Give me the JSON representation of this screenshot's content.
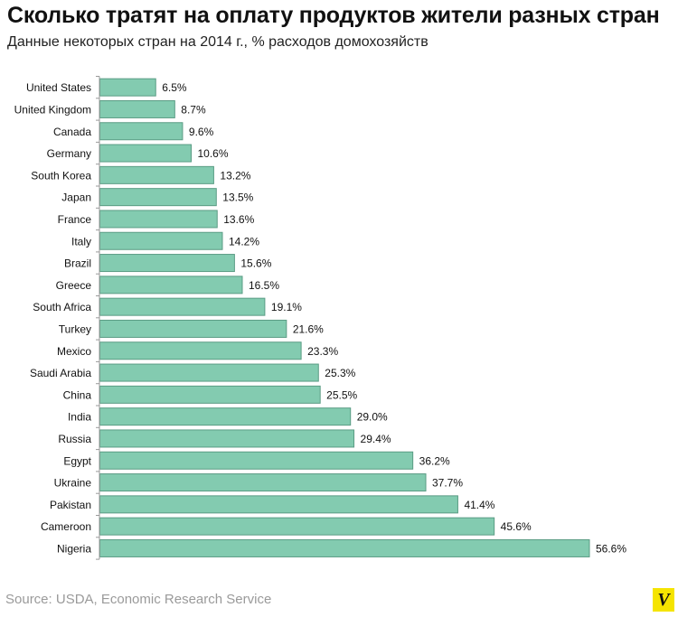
{
  "header": {
    "title": "Сколько тратят на оплату продуктов жители разных стран",
    "subtitle": "Данные некоторых стран на 2014 г., % расходов домохозяйств"
  },
  "footer": {
    "source": "Source: USDA, Economic Research Service",
    "logo_letter": "V"
  },
  "colors": {
    "bar_fill": "#83cbb0",
    "bar_stroke": "#5a9c84",
    "axis": "#9a9a9a",
    "logo_bg": "#f5e400"
  },
  "chart_data": {
    "type": "bar",
    "orientation": "horizontal",
    "title": "Сколько тратят на оплату продуктов жители разных стран",
    "subtitle": "Данные некоторых стран на 2014 г., % расходов домохозяйств",
    "xlabel": "",
    "ylabel": "",
    "grid": false,
    "legend": "none",
    "xlim": [
      0,
      56.6
    ],
    "categories": [
      "United States",
      "United Kingdom",
      "Canada",
      "Germany",
      "South Korea",
      "Japan",
      "France",
      "Italy",
      "Brazil",
      "Greece",
      "South Africa",
      "Turkey",
      "Mexico",
      "Saudi Arabia",
      "China",
      "India",
      "Russia",
      "Egypt",
      "Ukraine",
      "Pakistan",
      "Cameroon",
      "Nigeria"
    ],
    "values": [
      6.5,
      8.7,
      9.6,
      10.6,
      13.2,
      13.5,
      13.6,
      14.2,
      15.6,
      16.5,
      19.1,
      21.6,
      23.3,
      25.3,
      25.5,
      29.0,
      29.4,
      36.2,
      37.7,
      41.4,
      45.6,
      56.6
    ],
    "value_labels": [
      "6.5%",
      "8.7%",
      "9.6%",
      "10.6%",
      "13.2%",
      "13.5%",
      "13.6%",
      "14.2%",
      "15.6%",
      "16.5%",
      "19.1%",
      "21.6%",
      "23.3%",
      "25.3%",
      "25.5%",
      "29.0%",
      "29.4%",
      "36.2%",
      "37.7%",
      "41.4%",
      "45.6%",
      "56.6%"
    ]
  }
}
